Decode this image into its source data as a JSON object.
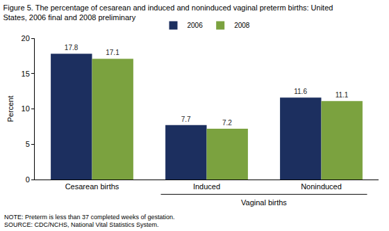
{
  "chart_data": {
    "type": "bar",
    "title": "Figure 5. The percentage of cesarean and induced and noninduced vaginal preterm births: United States, 2006 final and 2008 preliminary",
    "categories": [
      "Cesarean births",
      "Induced",
      "Noninduced"
    ],
    "series": [
      {
        "name": "2006",
        "color": "#1c2f5f",
        "values": [
          17.8,
          7.7,
          11.6
        ]
      },
      {
        "name": "2008",
        "color": "#7ba23f",
        "values": [
          17.1,
          7.2,
          11.1
        ]
      }
    ],
    "y_label": "Percent",
    "ylim": [
      0,
      20
    ],
    "yticks": [
      0,
      5,
      10,
      15,
      20
    ],
    "grid": false,
    "legend": "top",
    "data_labels": true,
    "annotations": [
      {
        "text": "Vaginal births",
        "categories": [
          "Induced",
          "Noninduced"
        ]
      },
      {
        "text": "NOTE: Preterm is less than 37 completed weeks of gestation."
      },
      {
        "text": "SOURCE: CDC/NCHS, National Vital Statistics System."
      }
    ]
  }
}
